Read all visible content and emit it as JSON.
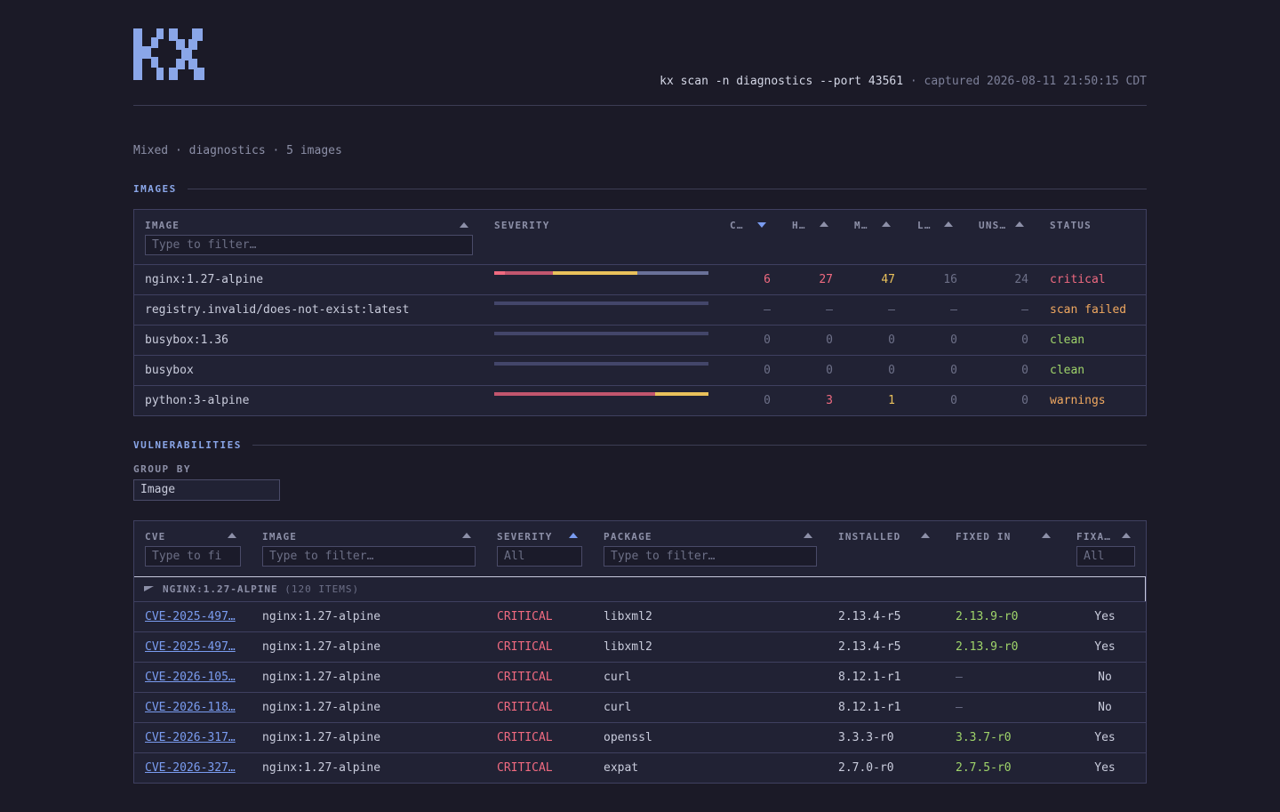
{
  "header": {
    "logo": "KX",
    "command": "kx scan -n diagnostics --port 43561",
    "separator": "·",
    "captured": "captured 2026-08-11 21:50:15 CDT"
  },
  "summary": "Mixed · diagnostics · 5 images",
  "images_section": {
    "title": "IMAGES",
    "columns": {
      "image": "IMAGE",
      "severity": "SEVERITY",
      "critical": "C…",
      "high": "H…",
      "medium": "M…",
      "low": "L…",
      "unspecified": "UNS…",
      "status": "STATUS"
    },
    "filter_placeholder": "Type to filter…",
    "rows": [
      {
        "image": "nginx:1.27-alpine",
        "c": "6",
        "h": "27",
        "m": "47",
        "l": "16",
        "u": "24",
        "status": "critical",
        "bar": [
          {
            "v": 6,
            "color": "#f06a80"
          },
          {
            "v": 27,
            "color": "#c2566e"
          },
          {
            "v": 47,
            "color": "#e9c15b"
          },
          {
            "v": 40,
            "color": "#6a7199"
          }
        ]
      },
      {
        "image": "registry.invalid/does-not-exist:latest",
        "c": "–",
        "h": "–",
        "m": "–",
        "l": "–",
        "u": "–",
        "status": "scan failed",
        "bar": [
          {
            "v": 1,
            "color": "#43466a"
          }
        ]
      },
      {
        "image": "busybox:1.36",
        "c": "0",
        "h": "0",
        "m": "0",
        "l": "0",
        "u": "0",
        "status": "clean",
        "bar": [
          {
            "v": 1,
            "color": "#43466a"
          }
        ]
      },
      {
        "image": "busybox",
        "c": "0",
        "h": "0",
        "m": "0",
        "l": "0",
        "u": "0",
        "status": "clean",
        "bar": [
          {
            "v": 1,
            "color": "#43466a"
          }
        ]
      },
      {
        "image": "python:3-alpine",
        "c": "0",
        "h": "3",
        "m": "1",
        "l": "0",
        "u": "0",
        "status": "warnings",
        "bar": [
          {
            "v": 3,
            "color": "#c2566e"
          },
          {
            "v": 1,
            "color": "#e9c15b"
          }
        ]
      }
    ]
  },
  "vuln_section": {
    "title": "VULNERABILITIES",
    "group_by_label": "GROUP BY",
    "group_by_value": "Image",
    "columns": {
      "cve": "CVE",
      "image": "IMAGE",
      "severity": "SEVERITY",
      "package": "PACKAGE",
      "installed": "INSTALLED",
      "fixed_in": "FIXED IN",
      "fixable": "FIXA…"
    },
    "filters": {
      "cve": "Type to fi",
      "image": "Type to filter…",
      "severity": "All",
      "package": "Type to filter…",
      "fixable": "All"
    },
    "group": {
      "name": "NGINX:1.27-ALPINE",
      "count": "(120 ITEMS)"
    },
    "rows": [
      {
        "cve": "CVE-2025-497…",
        "image": "nginx:1.27-alpine",
        "severity": "CRITICAL",
        "package": "libxml2",
        "installed": "2.13.4-r5",
        "fixed": "2.13.9-r0",
        "fixable": "Yes"
      },
      {
        "cve": "CVE-2025-497…",
        "image": "nginx:1.27-alpine",
        "severity": "CRITICAL",
        "package": "libxml2",
        "installed": "2.13.4-r5",
        "fixed": "2.13.9-r0",
        "fixable": "Yes"
      },
      {
        "cve": "CVE-2026-105…",
        "image": "nginx:1.27-alpine",
        "severity": "CRITICAL",
        "package": "curl",
        "installed": "8.12.1-r1",
        "fixed": "–",
        "fixable": "No"
      },
      {
        "cve": "CVE-2026-118…",
        "image": "nginx:1.27-alpine",
        "severity": "CRITICAL",
        "package": "curl",
        "installed": "8.12.1-r1",
        "fixed": "–",
        "fixable": "No"
      },
      {
        "cve": "CVE-2026-317…",
        "image": "nginx:1.27-alpine",
        "severity": "CRITICAL",
        "package": "openssl",
        "installed": "3.3.3-r0",
        "fixed": "3.3.7-r0",
        "fixable": "Yes"
      },
      {
        "cve": "CVE-2026-327…",
        "image": "nginx:1.27-alpine",
        "severity": "CRITICAL",
        "package": "expat",
        "installed": "2.7.0-r0",
        "fixed": "2.7.5-r0",
        "fixable": "Yes"
      }
    ]
  },
  "colors": {
    "accent": "#7a9cf0",
    "critical": "#f06a80",
    "medium": "#e9c15b",
    "clean": "#9fd46a",
    "warning": "#f0a860"
  }
}
